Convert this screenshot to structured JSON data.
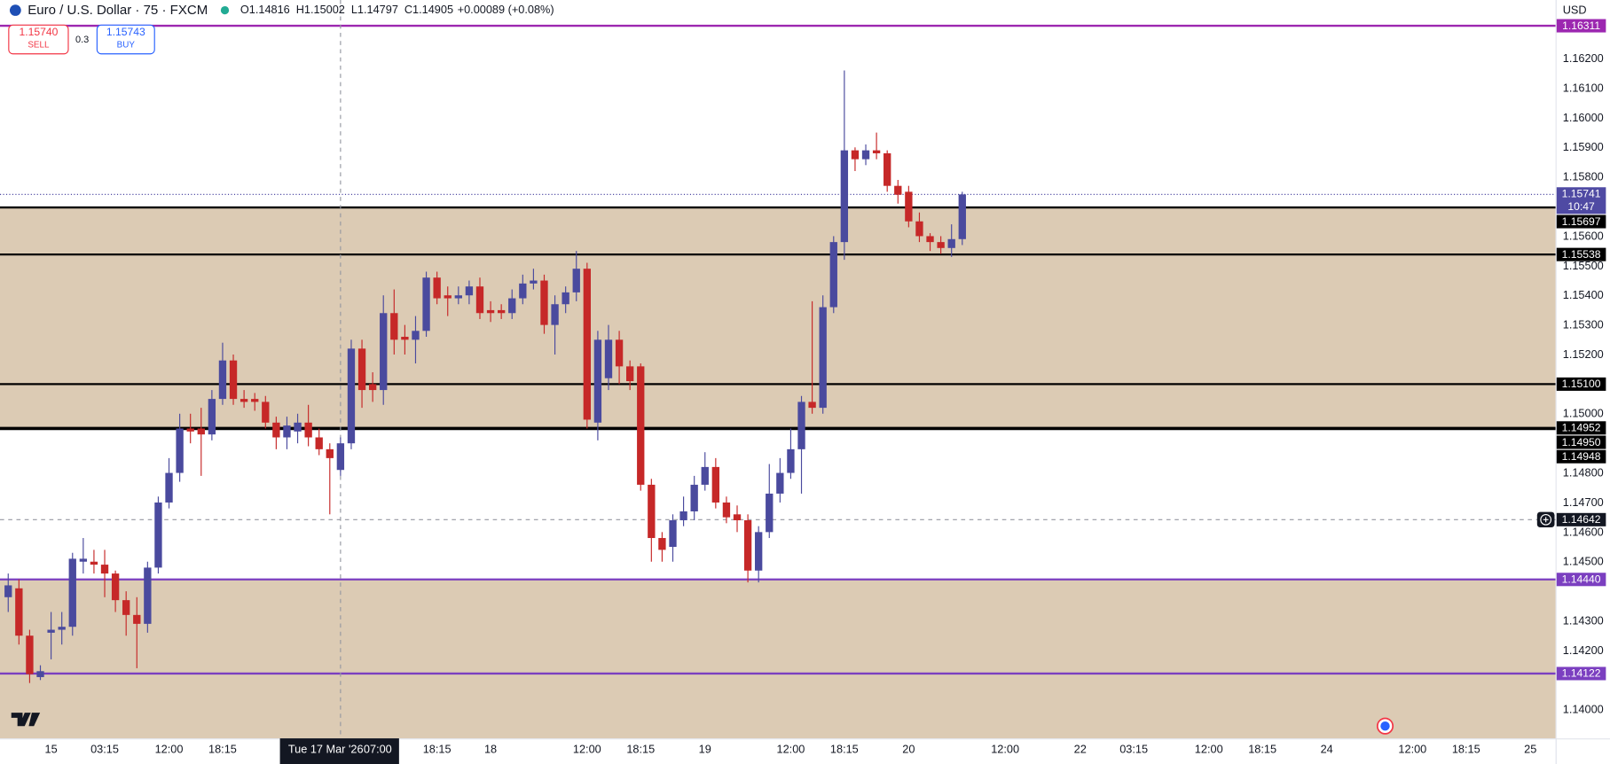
{
  "toolbar": {
    "symbol": "Euro / U.S. Dollar · 75 · FXCM",
    "ohlc": [
      {
        "key": "O",
        "text": "1.14816"
      },
      {
        "key": "H",
        "text": "1.15002"
      },
      {
        "key": "L",
        "text": "1.14797"
      },
      {
        "key": "C",
        "text": "1.14905"
      }
    ],
    "change": "+0.00089 (+0.08%)",
    "sell": {
      "price": "1.15740",
      "label": "SELL"
    },
    "spread": "0.3",
    "buy": {
      "price": "1.15743",
      "label": "BUY"
    },
    "currency": "USD"
  },
  "chart_data": {
    "type": "candlestick",
    "up_color": "#4a4a9e",
    "down_color": "#c62828",
    "categories": [
      null,
      null,
      null,
      null,
      "15",
      null,
      null,
      null,
      null,
      "03:15",
      null,
      null,
      null,
      null,
      null,
      "12:00",
      null,
      null,
      null,
      null,
      "18:15",
      null,
      null,
      null,
      null,
      null,
      null,
      null,
      null,
      null,
      null,
      {
        "date": "Tue 17 Mar '26",
        "time": "07:00"
      },
      null,
      null,
      null,
      null,
      null,
      null,
      null,
      null,
      "18:15",
      null,
      null,
      null,
      null,
      "18",
      null,
      null,
      null,
      null,
      null,
      null,
      null,
      null,
      "12:00",
      null,
      null,
      null,
      null,
      "18:15",
      null,
      null,
      null,
      null,
      null,
      "19",
      null,
      null,
      null,
      null,
      null,
      null,
      null,
      "12:00",
      null,
      null,
      null,
      null,
      "18:15",
      null,
      null,
      null,
      null,
      null,
      "20",
      null,
      null,
      null,
      null,
      null,
      null,
      null,
      null,
      "12:00",
      null,
      null,
      null,
      null,
      null,
      null,
      "22",
      null,
      null,
      null,
      null,
      "03:15",
      null,
      null,
      null,
      null,
      null,
      null,
      "12:00",
      null,
      null,
      null,
      null,
      "18:15",
      null,
      null,
      null,
      null,
      null,
      "24",
      null,
      null,
      null,
      null,
      null,
      null,
      null,
      "12:00",
      null,
      null,
      null,
      null,
      "18:15",
      null,
      null,
      null,
      null,
      null,
      "25"
    ],
    "open": [
      1.1438,
      1.1441,
      1.1425,
      1.1411,
      1.1426,
      1.1427,
      1.1428,
      1.145,
      1.145,
      1.1449,
      1.1446,
      1.1437,
      1.1432,
      1.1429,
      1.1448,
      1.147,
      1.148,
      1.1495,
      1.1495,
      1.1493,
      1.1505,
      1.1518,
      1.1505,
      1.1505,
      1.1504,
      1.1497,
      1.1492,
      1.1494,
      1.1497,
      1.1492,
      1.1488,
      1.1481,
      1.149,
      1.1522,
      1.151,
      1.1508,
      1.1534,
      1.1526,
      1.1525,
      1.1528,
      1.1546,
      1.154,
      1.1539,
      1.154,
      1.1543,
      1.1535,
      1.1535,
      1.1534,
      1.1539,
      1.1544,
      1.1545,
      1.153,
      1.1537,
      1.1541,
      1.1549,
      1.1497,
      1.1512,
      1.1525,
      1.1516,
      1.1516,
      1.1476,
      1.1458,
      1.1455,
      1.1464,
      1.1467,
      1.1476,
      1.1482,
      1.147,
      1.1466,
      1.1464,
      1.1447,
      1.146,
      1.1473,
      1.148,
      1.1488,
      1.1504,
      1.1502,
      1.1536,
      1.1558,
      1.1589,
      1.1586,
      1.1589,
      1.1588,
      1.1577,
      1.1575,
      1.1565,
      1.156,
      1.1558,
      1.1556,
      1.1559,
      null,
      null,
      null,
      null,
      null,
      null,
      null,
      null,
      null,
      null,
      null,
      null,
      null,
      null,
      null,
      null,
      null,
      null,
      null,
      null,
      null,
      null,
      null,
      null,
      null,
      null,
      null,
      null,
      null,
      null,
      null,
      null,
      null,
      null,
      null,
      null,
      null,
      null,
      null,
      null,
      null,
      null,
      null,
      null,
      null,
      null,
      null,
      null,
      null,
      null,
      null,
      null,
      null
    ],
    "high": [
      1.1446,
      1.1444,
      1.1427,
      1.1415,
      1.1433,
      1.1433,
      1.1453,
      1.1458,
      1.1454,
      1.1454,
      1.1447,
      1.144,
      1.1438,
      1.145,
      1.1472,
      1.1485,
      1.15,
      1.15,
      1.1502,
      1.1508,
      1.1524,
      1.152,
      1.1508,
      1.1507,
      1.1506,
      1.1499,
      1.1499,
      1.15,
      1.1503,
      1.1495,
      1.149,
      1.1492,
      1.1525,
      1.1525,
      1.1514,
      1.154,
      1.1542,
      1.153,
      1.1533,
      1.1548,
      1.1548,
      1.1543,
      1.1543,
      1.1545,
      1.1546,
      1.1538,
      1.1537,
      1.1542,
      1.1547,
      1.1549,
      1.1547,
      1.154,
      1.1543,
      1.1555,
      1.1551,
      1.1528,
      1.153,
      1.1528,
      1.1518,
      1.1517,
      1.1478,
      1.146,
      1.1466,
      1.1472,
      1.1479,
      1.1487,
      1.1485,
      1.1472,
      1.1469,
      1.1466,
      1.1462,
      1.1483,
      1.1485,
      1.1495,
      1.1506,
      1.1538,
      1.154,
      1.156,
      1.1616,
      1.159,
      1.1591,
      1.1595,
      1.1589,
      1.1579,
      1.1577,
      1.1568,
      1.1561,
      1.156,
      1.1564,
      1.1575,
      null,
      null,
      null,
      null,
      null,
      null,
      null,
      null,
      null,
      null,
      null,
      null,
      null,
      null,
      null,
      null,
      null,
      null,
      null,
      null,
      null,
      null,
      null,
      null,
      null,
      null,
      null,
      null,
      null,
      null,
      null,
      null,
      null,
      null,
      null,
      null,
      null,
      null,
      null,
      null,
      null,
      null,
      null,
      null,
      null,
      null,
      null,
      null,
      null,
      null,
      null,
      null,
      null
    ],
    "low": [
      1.1433,
      1.1422,
      1.1409,
      1.141,
      1.1417,
      1.1422,
      1.1425,
      1.1446,
      1.1446,
      1.1438,
      1.1433,
      1.1425,
      1.1414,
      1.1426,
      1.1446,
      1.1468,
      1.1477,
      1.149,
      1.1479,
      1.1491,
      1.1503,
      1.1503,
      1.1502,
      1.1501,
      1.1495,
      1.1488,
      1.1488,
      1.149,
      1.1489,
      1.1486,
      1.1466,
      1.1479,
      1.1488,
      1.1502,
      1.1504,
      1.1503,
      1.152,
      1.152,
      1.1517,
      1.1526,
      1.1537,
      1.1533,
      1.1537,
      1.1537,
      1.1532,
      1.1531,
      1.1532,
      1.1532,
      1.1537,
      1.1542,
      1.1527,
      1.152,
      1.1534,
      1.1538,
      1.1495,
      1.1491,
      1.1508,
      1.151,
      1.1508,
      1.1474,
      1.145,
      1.145,
      1.145,
      1.1462,
      1.1464,
      1.1474,
      1.1468,
      1.1463,
      1.146,
      1.1443,
      1.1443,
      1.1458,
      1.147,
      1.1478,
      1.1473,
      1.15,
      1.15,
      1.1534,
      1.1552,
      1.1582,
      1.1584,
      1.1586,
      1.1575,
      1.1571,
      1.1563,
      1.1558,
      1.1555,
      1.1554,
      1.1553,
      1.1557,
      null,
      null,
      null,
      null,
      null,
      null,
      null,
      null,
      null,
      null,
      null,
      null,
      null,
      null,
      null,
      null,
      null,
      null,
      null,
      null,
      null,
      null,
      null,
      null,
      null,
      null,
      null,
      null,
      null,
      null,
      null,
      null,
      null,
      null,
      null,
      null,
      null,
      null,
      null,
      null,
      null,
      null,
      null,
      null,
      null,
      null,
      null,
      null,
      null,
      null,
      null,
      null,
      null
    ],
    "close": [
      1.1442,
      1.1425,
      1.1412,
      1.1413,
      1.1427,
      1.1428,
      1.1451,
      1.1451,
      1.1449,
      1.1446,
      1.1437,
      1.1432,
      1.1429,
      1.1448,
      1.147,
      1.148,
      1.1495,
      1.1494,
      1.1493,
      1.1505,
      1.1518,
      1.1505,
      1.1504,
      1.1504,
      1.1497,
      1.1492,
      1.1496,
      1.1497,
      1.1492,
      1.1488,
      1.1485,
      1.149,
      1.1522,
      1.1508,
      1.1508,
      1.1534,
      1.1525,
      1.1525,
      1.1528,
      1.1546,
      1.1539,
      1.1539,
      1.154,
      1.1543,
      1.1534,
      1.1534,
      1.1534,
      1.1539,
      1.1544,
      1.1545,
      1.153,
      1.1537,
      1.1541,
      1.1549,
      1.1498,
      1.1525,
      1.1525,
      1.1516,
      1.1511,
      1.1476,
      1.1458,
      1.1454,
      1.1464,
      1.1467,
      1.1476,
      1.1482,
      1.147,
      1.1465,
      1.1464,
      1.1447,
      1.146,
      1.1473,
      1.148,
      1.1488,
      1.1504,
      1.1502,
      1.1536,
      1.1558,
      1.1589,
      1.1586,
      1.1589,
      1.1588,
      1.1577,
      1.1574,
      1.1565,
      1.156,
      1.1558,
      1.1556,
      1.1559,
      1.15741,
      null,
      null,
      null,
      null,
      null,
      null,
      null,
      null,
      null,
      null,
      null,
      null,
      null,
      null,
      null,
      null,
      null,
      null,
      null,
      null,
      null,
      null,
      null,
      null,
      null,
      null,
      null,
      null,
      null,
      null,
      null,
      null,
      null,
      null,
      null,
      null,
      null,
      null,
      null,
      null,
      null,
      null,
      null,
      null,
      null,
      null,
      null,
      null,
      null,
      null,
      null,
      null,
      null
    ],
    "ylim": [
      1.13903,
      1.16398
    ],
    "yticks": [
      {
        "value": 1.162,
        "label": "1.16200"
      },
      {
        "value": 1.161,
        "label": "1.16100"
      },
      {
        "value": 1.16,
        "label": "1.16000"
      },
      {
        "value": 1.159,
        "label": "1.15900"
      },
      {
        "value": 1.158,
        "label": "1.15800"
      },
      {
        "value": 1.156,
        "label": "1.15600"
      },
      {
        "value": 1.155,
        "label": "1.15500"
      },
      {
        "value": 1.154,
        "label": "1.15400"
      },
      {
        "value": 1.153,
        "label": "1.15300"
      },
      {
        "value": 1.152,
        "label": "1.15200"
      },
      {
        "value": 1.15,
        "label": "1.15000"
      },
      {
        "value": 1.148,
        "label": "1.14800"
      },
      {
        "value": 1.147,
        "label": "1.14700"
      },
      {
        "value": 1.146,
        "label": "1.14600"
      },
      {
        "value": 1.145,
        "label": "1.14500"
      },
      {
        "value": 1.143,
        "label": "1.14300"
      },
      {
        "value": 1.142,
        "label": "1.14200"
      },
      {
        "value": 1.14,
        "label": "1.14000"
      }
    ],
    "grid": false,
    "zones": [
      {
        "from": 1.15697,
        "to": 1.14952,
        "color": "#dccbb4"
      },
      {
        "from": 1.1444,
        "color": "#dccbb4"
      }
    ],
    "levels": [
      {
        "value": 1.16311,
        "label": "1.16311",
        "color": "#9c27b0"
      },
      {
        "value": 1.15697,
        "label": "1.15697",
        "color": "#000000"
      },
      {
        "value": 1.15538,
        "label": "1.15538",
        "color": "#000000"
      },
      {
        "value": 1.151,
        "label": "1.15100",
        "color": "#000000"
      },
      {
        "value": 1.14952,
        "label": "1.14952",
        "color": "#000000"
      },
      {
        "value": 1.1495,
        "label": "1.14950",
        "color": "#000000"
      },
      {
        "value": 1.14948,
        "label": "1.14948",
        "color": "#000000"
      },
      {
        "value": 1.1444,
        "label": "1.14440",
        "color": "#7b3fc0"
      },
      {
        "value": 1.14122,
        "label": "1.14122",
        "color": "#7b3fc0"
      }
    ],
    "last": {
      "value": 1.15741,
      "label": "1.15741",
      "countdown": "10:47",
      "color": "#4f4aa3"
    },
    "crosshair_price": {
      "value": 1.14642,
      "label": "1.14642"
    }
  }
}
